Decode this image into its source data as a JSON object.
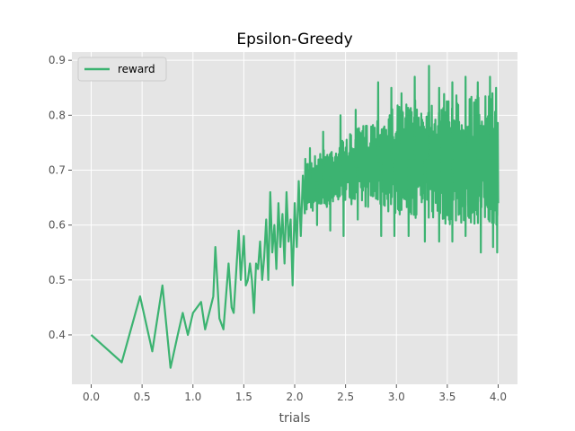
{
  "chart_data": {
    "type": "line",
    "title": "Epsilon-Greedy",
    "xlabel": "trials",
    "ylabel": "",
    "xlim": [
      -0.19,
      4.19
    ],
    "ylim": [
      0.31,
      0.915
    ],
    "grid": true,
    "legend_position": "top-left",
    "x_ticks": [
      0.0,
      0.5,
      1.0,
      1.5,
      2.0,
      2.5,
      3.0,
      3.5,
      4.0
    ],
    "x_tick_labels": [
      "0.0",
      "0.5",
      "1.0",
      "1.5",
      "2.0",
      "2.5",
      "3.0",
      "3.5",
      "4.0"
    ],
    "y_ticks": [
      0.4,
      0.5,
      0.6,
      0.7,
      0.8,
      0.9
    ],
    "y_tick_labels": [
      "0.4",
      "0.5",
      "0.6",
      "0.7",
      "0.8",
      "0.9"
    ],
    "series": [
      {
        "name": "reward",
        "color": "#3cb371",
        "x": [
          0.0,
          0.3,
          0.48,
          0.6,
          0.7,
          0.78,
          0.85,
          0.9,
          0.95,
          1.0,
          1.08,
          1.12,
          1.2,
          1.22,
          1.26,
          1.3,
          1.35,
          1.38,
          1.4,
          1.45,
          1.47,
          1.5,
          1.52,
          1.54,
          1.56,
          1.58,
          1.6,
          1.62,
          1.64,
          1.66,
          1.68,
          1.7,
          1.72,
          1.74,
          1.76,
          1.78,
          1.8,
          1.82,
          1.84,
          1.86,
          1.88,
          1.9,
          1.92,
          1.94,
          1.96,
          1.98,
          2.0,
          2.02,
          2.04,
          2.06,
          2.08,
          2.1
        ],
        "values": [
          0.4,
          0.35,
          0.47,
          0.37,
          0.49,
          0.34,
          0.4,
          0.44,
          0.4,
          0.44,
          0.46,
          0.41,
          0.47,
          0.56,
          0.43,
          0.41,
          0.53,
          0.45,
          0.44,
          0.59,
          0.5,
          0.58,
          0.49,
          0.5,
          0.53,
          0.5,
          0.44,
          0.53,
          0.52,
          0.57,
          0.5,
          0.54,
          0.61,
          0.5,
          0.66,
          0.55,
          0.6,
          0.52,
          0.64,
          0.56,
          0.62,
          0.53,
          0.66,
          0.57,
          0.61,
          0.49,
          0.64,
          0.56,
          0.68,
          0.58,
          0.69,
          0.62
        ],
        "dense_band": {
          "x_range": [
            2.1,
            4.0
          ],
          "upper": [
            [
              2.1,
              0.72
            ],
            [
              2.5,
              0.76
            ],
            [
              2.8,
              0.8
            ],
            [
              3.0,
              0.82
            ],
            [
              3.5,
              0.84
            ],
            [
              4.0,
              0.84
            ]
          ],
          "lower": [
            [
              2.1,
              0.62
            ],
            [
              2.5,
              0.64
            ],
            [
              3.0,
              0.62
            ],
            [
              3.5,
              0.6
            ],
            [
              4.0,
              0.6
            ]
          ],
          "peaks": [
            [
              2.15,
              0.74
            ],
            [
              2.28,
              0.77
            ],
            [
              2.45,
              0.8
            ],
            [
              2.6,
              0.81
            ],
            [
              2.82,
              0.86
            ],
            [
              2.95,
              0.85
            ],
            [
              3.05,
              0.84
            ],
            [
              3.18,
              0.87
            ],
            [
              3.32,
              0.89
            ],
            [
              3.42,
              0.85
            ],
            [
              3.55,
              0.86
            ],
            [
              3.68,
              0.87
            ],
            [
              3.8,
              0.86
            ],
            [
              3.92,
              0.87
            ],
            [
              3.98,
              0.85
            ]
          ],
          "troughs": [
            [
              2.22,
              0.6
            ],
            [
              2.35,
              0.59
            ],
            [
              2.48,
              0.58
            ],
            [
              2.62,
              0.61
            ],
            [
              2.85,
              0.58
            ],
            [
              2.98,
              0.58
            ],
            [
              3.12,
              0.58
            ],
            [
              3.28,
              0.57
            ],
            [
              3.42,
              0.57
            ],
            [
              3.55,
              0.57
            ],
            [
              3.68,
              0.58
            ],
            [
              3.83,
              0.55
            ],
            [
              3.95,
              0.56
            ],
            [
              3.99,
              0.55
            ]
          ],
          "end_value": 0.64
        }
      }
    ]
  }
}
